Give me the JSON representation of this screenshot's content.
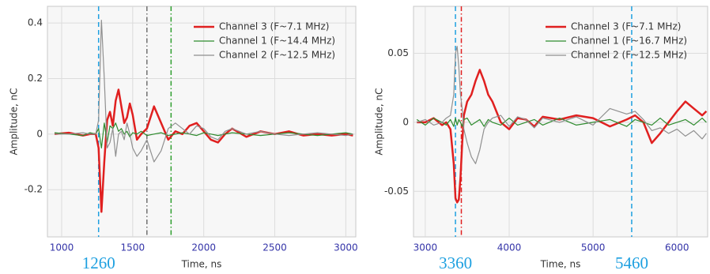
{
  "chart_data": [
    {
      "type": "line",
      "ylabel": "Amplitude, nC",
      "xlabel": "Time, ns",
      "xlim": [
        900,
        3070
      ],
      "ylim": [
        -0.37,
        0.46
      ],
      "xticks": [
        1000,
        1500,
        2000,
        2500,
        3000
      ],
      "yticks": [
        -0.2,
        0,
        0.2,
        0.4
      ],
      "grid": true,
      "legend": "upper right",
      "x": [
        950,
        1050,
        1150,
        1200,
        1240,
        1260,
        1280,
        1300,
        1320,
        1340,
        1360,
        1380,
        1400,
        1420,
        1440,
        1460,
        1480,
        1500,
        1530,
        1560,
        1600,
        1650,
        1700,
        1750,
        1800,
        1850,
        1900,
        1950,
        2000,
        2050,
        2100,
        2150,
        2200,
        2300,
        2400,
        2500,
        2600,
        2700,
        2800,
        2900,
        3000,
        3050
      ],
      "series": [
        {
          "name": "Channel 3 (F~7.1 MHz)",
          "color": "#e02020",
          "width": 2.5,
          "values": [
            0,
            0.005,
            -0.005,
            0,
            0,
            -0.05,
            -0.28,
            -0.1,
            0.05,
            0.08,
            0.03,
            0.12,
            0.16,
            0.1,
            0.04,
            0.06,
            0.11,
            0.07,
            -0.02,
            0,
            0.02,
            0.1,
            0.04,
            -0.02,
            0.01,
            0,
            0.03,
            0.04,
            0.01,
            -0.02,
            -0.03,
            0,
            0.02,
            -0.01,
            0.01,
            0,
            0.01,
            -0.005,
            0,
            -0.005,
            0,
            -0.005
          ]
        },
        {
          "name": "Channel 1 (F~14.4 MHz)",
          "color": "#2e8b2e",
          "width": 1.2,
          "values": [
            0.005,
            0,
            -0.005,
            0.005,
            0,
            0.02,
            -0.05,
            0.04,
            -0.03,
            0.03,
            0.02,
            0.04,
            0.01,
            0.02,
            0,
            0.01,
            -0.01,
            0.005,
            0,
            0.01,
            -0.005,
            0,
            0.005,
            -0.005,
            0,
            0.005,
            0,
            -0.005,
            0.005,
            0,
            -0.005,
            0,
            0.005,
            0,
            -0.005,
            0,
            0.005,
            0,
            -0.005,
            0,
            0.005,
            0
          ]
        },
        {
          "name": "Channel 2 (F~12.5 MHz)",
          "color": "#909090",
          "width": 1.2,
          "values": [
            0,
            0,
            0.005,
            0,
            0,
            0.05,
            0.41,
            0.2,
            -0.05,
            -0.03,
            0.02,
            -0.08,
            0,
            0.01,
            -0.02,
            0.04,
            0,
            -0.05,
            -0.08,
            -0.06,
            -0.02,
            -0.1,
            -0.06,
            0.02,
            0.04,
            0.02,
            0,
            0.03,
            0.02,
            -0.01,
            -0.02,
            0.01,
            0.02,
            0,
            0.01,
            0,
            -0.005,
            0,
            0.005,
            0,
            -0.005,
            0
          ]
        }
      ],
      "vlines": [
        {
          "x": 1260,
          "color": "#1ea0e0",
          "style": "dashed",
          "label": "1260"
        },
        {
          "x": 1600,
          "color": "#707070",
          "style": "dashdot"
        },
        {
          "x": 1770,
          "color": "#2e9e2e",
          "style": "dashdot"
        }
      ]
    },
    {
      "type": "line",
      "ylabel": "Amplitude, nC",
      "xlabel": "Time, ns",
      "xlim": [
        2860,
        6365
      ],
      "ylim": [
        -0.083,
        0.084
      ],
      "xticks": [
        3000,
        4000,
        5000,
        6000
      ],
      "yticks": [
        -0.05,
        0,
        0.05
      ],
      "grid": true,
      "legend": "upper right",
      "x": [
        2900,
        3000,
        3100,
        3200,
        3250,
        3300,
        3340,
        3360,
        3380,
        3400,
        3420,
        3440,
        3460,
        3500,
        3550,
        3600,
        3650,
        3700,
        3750,
        3800,
        3900,
        4000,
        4100,
        4200,
        4300,
        4400,
        4600,
        4800,
        5000,
        5200,
        5400,
        5500,
        5600,
        5700,
        5800,
        5900,
        6000,
        6100,
        6200,
        6300,
        6350
      ],
      "series": [
        {
          "name": "Channel 3 (F~7.1 MHz)",
          "color": "#e02020",
          "width": 2.5,
          "values": [
            0,
            0,
            0.003,
            -0.002,
            0,
            -0.005,
            -0.03,
            -0.055,
            -0.058,
            -0.056,
            -0.04,
            -0.015,
            0.005,
            0.015,
            0.02,
            0.03,
            0.038,
            0.03,
            0.02,
            0.015,
            0,
            -0.005,
            0.003,
            0.002,
            -0.003,
            0.004,
            0.002,
            0.005,
            0.003,
            -0.003,
            0.002,
            0.005,
            0,
            -0.015,
            -0.008,
            0,
            0.008,
            0.015,
            0.01,
            0.005,
            0.008
          ]
        },
        {
          "name": "Channel 1 (F~16.7 MHz)",
          "color": "#2e8b2e",
          "width": 1.2,
          "values": [
            0.002,
            -0.002,
            0.003,
            0,
            -0.002,
            0.002,
            -0.003,
            0.003,
            -0.002,
            0.002,
            0,
            -0.003,
            0.002,
            0.003,
            -0.002,
            0,
            0.002,
            -0.003,
            0.002,
            0,
            -0.002,
            0.003,
            -0.002,
            0,
            0.002,
            -0.002,
            0.003,
            -0.002,
            0,
            0.002,
            -0.003,
            0.002,
            0,
            -0.002,
            0.003,
            -0.002,
            0,
            0.002,
            -0.002,
            0.003,
            0
          ]
        },
        {
          "name": "Channel 2 (F~12.5 MHz)",
          "color": "#909090",
          "width": 1.2,
          "values": [
            0,
            0.002,
            -0.002,
            0,
            0.003,
            0.005,
            0.02,
            0.05,
            0.055,
            0.04,
            0.02,
            0.01,
            -0.005,
            -0.015,
            -0.025,
            -0.03,
            -0.02,
            -0.005,
            0,
            0.003,
            0.005,
            -0.003,
            0.004,
            0.002,
            -0.004,
            0.003,
            0,
            0.004,
            -0.002,
            0.01,
            0.006,
            0.008,
            0.002,
            -0.006,
            -0.004,
            -0.008,
            -0.005,
            -0.01,
            -0.006,
            -0.012,
            -0.008
          ]
        }
      ],
      "vlines": [
        {
          "x": 3360,
          "color": "#1ea0e0",
          "style": "dashed",
          "label": "3360"
        },
        {
          "x": 3430,
          "color": "#e02020",
          "style": "dashdot"
        },
        {
          "x": 5460,
          "color": "#1ea0e0",
          "style": "dashed",
          "label": "5460"
        }
      ]
    }
  ]
}
